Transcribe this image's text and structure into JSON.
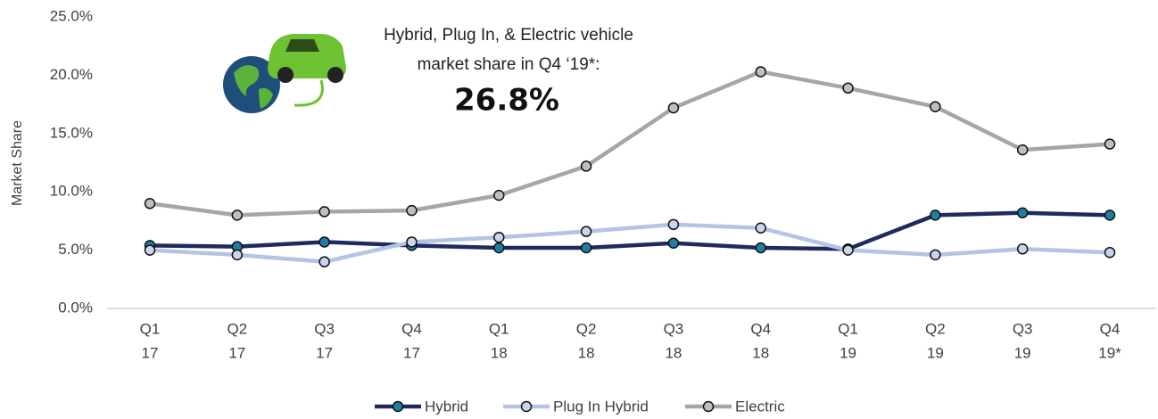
{
  "chart_data": {
    "type": "line",
    "y_label": "Market Share",
    "annotation": {
      "lines": [
        "Hybrid, Plug In, & Electric vehicle",
        "market share in Q4 ‘19*:"
      ],
      "value": "26.8%"
    },
    "categories": [
      [
        "Q1",
        "17"
      ],
      [
        "Q2",
        "17"
      ],
      [
        "Q3",
        "17"
      ],
      [
        "Q4",
        "17"
      ],
      [
        "Q1",
        "18"
      ],
      [
        "Q2",
        "18"
      ],
      [
        "Q3",
        "18"
      ],
      [
        "Q4",
        "18"
      ],
      [
        "Q1",
        "19"
      ],
      [
        "Q2",
        "19"
      ],
      [
        "Q3",
        "19"
      ],
      [
        "Q4",
        "19*"
      ]
    ],
    "series": [
      {
        "name": "Hybrid",
        "color": "#1f2a60",
        "marker_color": "#1f7fa0",
        "values": [
          5.4,
          5.3,
          5.7,
          5.4,
          5.2,
          5.2,
          5.6,
          5.2,
          5.1,
          8.0,
          8.2,
          8.0
        ]
      },
      {
        "name": "Plug In Hybrid",
        "color": "#b4c3e6",
        "marker_color": "#c9d4ee",
        "values": [
          5.0,
          4.6,
          4.0,
          5.7,
          6.1,
          6.6,
          7.2,
          6.9,
          5.0,
          4.6,
          5.1,
          4.8
        ]
      },
      {
        "name": "Electric",
        "color": "#a6a6a6",
        "marker_color": "#bfbfbf",
        "values": [
          9.0,
          8.0,
          8.3,
          8.4,
          9.7,
          12.2,
          17.2,
          20.3,
          18.9,
          17.3,
          13.6,
          14.1
        ]
      }
    ],
    "ylim": [
      0,
      25
    ],
    "yticks": [
      {
        "value": 0,
        "label": "0.0%"
      },
      {
        "value": 5,
        "label": "5.0%"
      },
      {
        "value": 10,
        "label": "10.0%"
      },
      {
        "value": 15,
        "label": "15.0%"
      },
      {
        "value": 20,
        "label": "20.0%"
      },
      {
        "value": 25,
        "label": "25.0%"
      }
    ],
    "legend": "bottom"
  }
}
